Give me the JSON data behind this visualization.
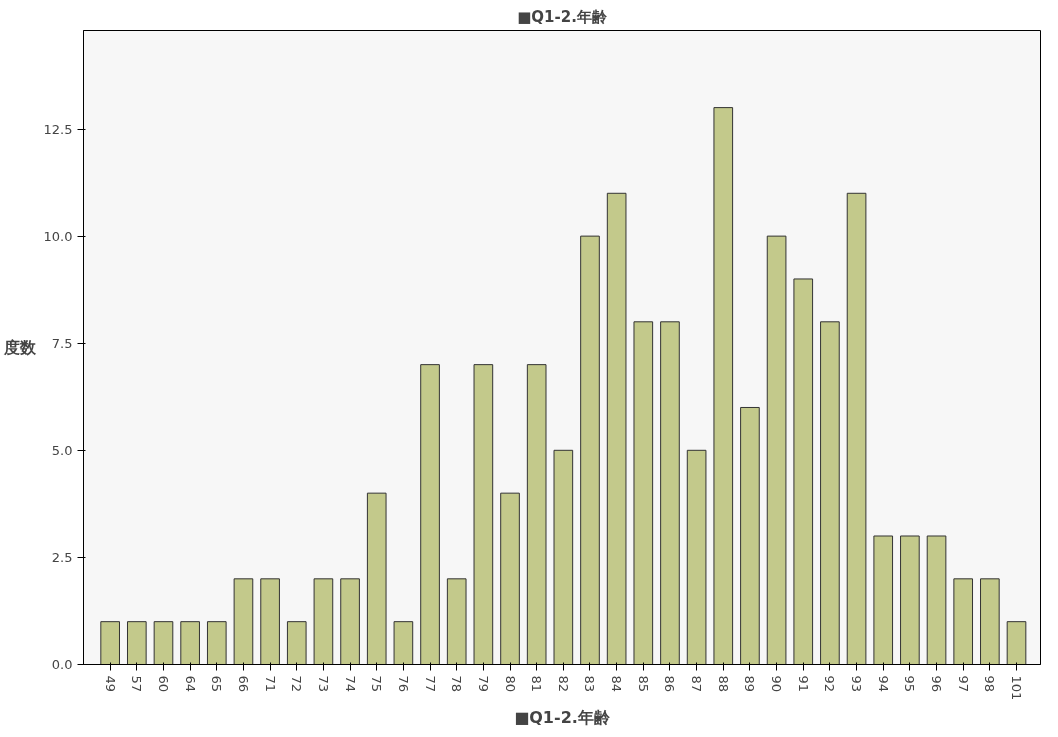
{
  "chart_data": {
    "type": "bar",
    "title": "■Q1-2.年齢",
    "xlabel": "■Q1-2.年齢",
    "ylabel": "度数",
    "categories": [
      "49",
      "57",
      "60",
      "64",
      "65",
      "66",
      "71",
      "72",
      "73",
      "74",
      "75",
      "76",
      "77",
      "78",
      "79",
      "80",
      "81",
      "82",
      "83",
      "84",
      "85",
      "86",
      "87",
      "88",
      "89",
      "90",
      "91",
      "92",
      "93",
      "94",
      "95",
      "96",
      "97",
      "98",
      "101"
    ],
    "values": [
      1,
      1,
      1,
      1,
      1,
      2,
      2,
      1,
      2,
      2,
      4,
      1,
      7,
      2,
      7,
      4,
      7,
      5,
      10,
      11,
      8,
      8,
      5,
      13,
      6,
      10,
      9,
      8,
      11,
      3,
      3,
      3,
      2,
      2,
      1
    ],
    "color": "#c3c98b",
    "ylim": [
      0,
      14.8
    ],
    "yticks": [
      {
        "value": 0,
        "label": "0.0"
      },
      {
        "value": 2.5,
        "label": "2.5"
      },
      {
        "value": 5,
        "label": "5.0"
      },
      {
        "value": 7.5,
        "label": "7.5"
      },
      {
        "value": 10,
        "label": "10.0"
      },
      {
        "value": 12.5,
        "label": "12.5"
      }
    ],
    "grid": false
  }
}
